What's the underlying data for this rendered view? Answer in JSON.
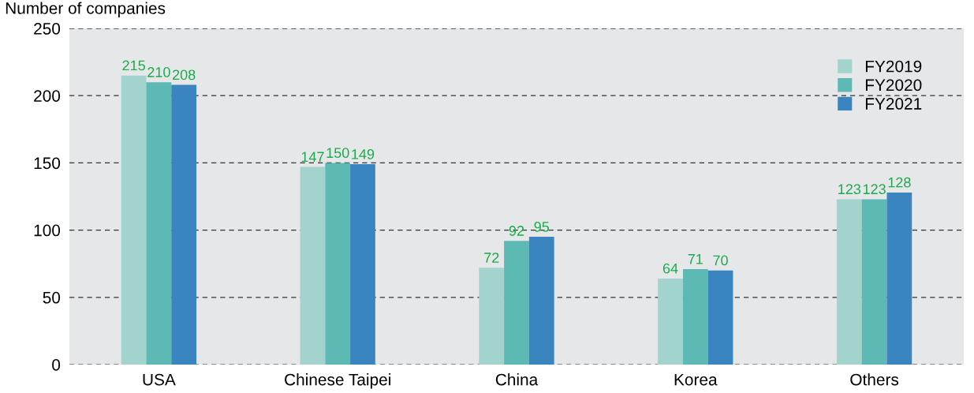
{
  "chart_data": {
    "type": "bar",
    "ylabel": "Number of companies",
    "categories": [
      "USA",
      "Chinese Taipei",
      "China",
      "Korea",
      "Others"
    ],
    "series": [
      {
        "name": "FY2019",
        "color": "#a2d3cc",
        "values": [
          215,
          147,
          72,
          64,
          123
        ]
      },
      {
        "name": "FY2020",
        "color": "#5cb9b4",
        "values": [
          210,
          150,
          92,
          71,
          123
        ]
      },
      {
        "name": "FY2021",
        "color": "#3a85bf",
        "values": [
          208,
          149,
          95,
          70,
          128
        ]
      }
    ],
    "ylim": [
      0,
      250
    ],
    "yticks": [
      0,
      50,
      100,
      150,
      200,
      250
    ],
    "grid": "y",
    "legend": "top right",
    "data_labels": true
  }
}
